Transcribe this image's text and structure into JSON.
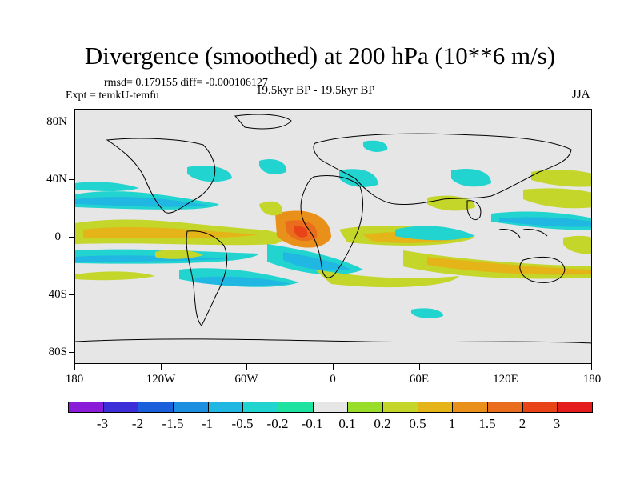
{
  "title": "Divergence (smoothed) at 200 hPa (10**6 m/s)",
  "stats_line": "rmsd= 0.179155 diff= -0.000106127",
  "experiment": "Expt = temkU-temfu",
  "period": "19.5kyr BP - 19.5kyr BP",
  "season": "JJA",
  "y_axis_labels": [
    "80N",
    "40N",
    "0",
    "40S",
    "80S"
  ],
  "x_axis_labels": [
    "180",
    "120W",
    "60W",
    "0",
    "60E",
    "120E",
    "180"
  ],
  "legend": {
    "labels": [
      "-3",
      "-2",
      "-1.5",
      "-1",
      "-0.5",
      "-0.2",
      "-0.1",
      "0.1",
      "0.2",
      "0.5",
      "1",
      "1.5",
      "2",
      "3"
    ],
    "colors": [
      "#8a1bd8",
      "#3c2ed8",
      "#1a5fdc",
      "#1c8fe0",
      "#21b7e3",
      "#22d4cf",
      "#1ee3a0",
      "#e6e6e6",
      "#98dd2a",
      "#c3d629",
      "#e4b419",
      "#e8901a",
      "#e96d1c",
      "#e84418",
      "#e41c1c"
    ]
  }
}
